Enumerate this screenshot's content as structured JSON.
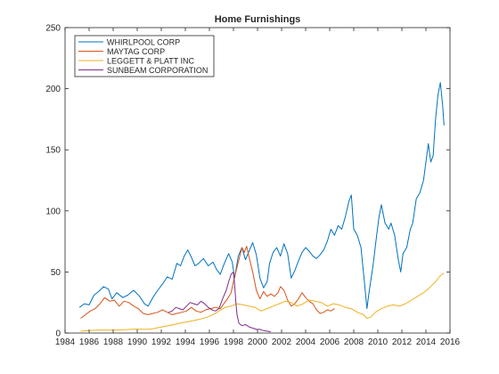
{
  "chart_data": {
    "type": "line",
    "title": "Home Furnishings",
    "xlabel": "",
    "ylabel": "",
    "xlim": [
      1984,
      2016
    ],
    "ylim": [
      0,
      250
    ],
    "xticks": [
      1984,
      1986,
      1988,
      1990,
      1992,
      1994,
      1996,
      1998,
      2000,
      2002,
      2004,
      2006,
      2008,
      2010,
      2012,
      2014,
      2016
    ],
    "yticks": [
      0,
      50,
      100,
      150,
      200,
      250
    ],
    "grid": false,
    "legend_position": "top-left",
    "series": [
      {
        "name": "WHIRLPOOL CORP",
        "color": "#0072BD",
        "points": [
          [
            1985.2,
            21
          ],
          [
            1985.6,
            24
          ],
          [
            1986.0,
            23
          ],
          [
            1986.4,
            31
          ],
          [
            1986.8,
            34
          ],
          [
            1987.2,
            38
          ],
          [
            1987.6,
            36
          ],
          [
            1987.9,
            28
          ],
          [
            1988.3,
            33
          ],
          [
            1988.8,
            29
          ],
          [
            1989.2,
            31
          ],
          [
            1989.7,
            35
          ],
          [
            1990.2,
            30
          ],
          [
            1990.6,
            24
          ],
          [
            1990.9,
            22
          ],
          [
            1991.3,
            29
          ],
          [
            1991.7,
            35
          ],
          [
            1992.1,
            40
          ],
          [
            1992.5,
            46
          ],
          [
            1992.9,
            44
          ],
          [
            1993.3,
            57
          ],
          [
            1993.6,
            55
          ],
          [
            1993.9,
            63
          ],
          [
            1994.2,
            68
          ],
          [
            1994.5,
            62
          ],
          [
            1994.8,
            55
          ],
          [
            1995.1,
            57
          ],
          [
            1995.5,
            61
          ],
          [
            1995.9,
            55
          ],
          [
            1996.3,
            58
          ],
          [
            1996.6,
            52
          ],
          [
            1996.9,
            48
          ],
          [
            1997.2,
            56
          ],
          [
            1997.6,
            65
          ],
          [
            1997.9,
            58
          ],
          [
            1998.1,
            45
          ],
          [
            1998.4,
            63
          ],
          [
            1998.7,
            70
          ],
          [
            1999.0,
            60
          ],
          [
            1999.3,
            67
          ],
          [
            1999.6,
            74
          ],
          [
            1999.9,
            64
          ],
          [
            2000.2,
            45
          ],
          [
            2000.5,
            37
          ],
          [
            2000.8,
            42
          ],
          [
            2001.0,
            57
          ],
          [
            2001.3,
            66
          ],
          [
            2001.6,
            70
          ],
          [
            2001.9,
            63
          ],
          [
            2002.2,
            73
          ],
          [
            2002.5,
            65
          ],
          [
            2002.8,
            45
          ],
          [
            2003.1,
            51
          ],
          [
            2003.4,
            59
          ],
          [
            2003.7,
            66
          ],
          [
            2004.0,
            70
          ],
          [
            2004.3,
            67
          ],
          [
            2004.6,
            63
          ],
          [
            2004.9,
            61
          ],
          [
            2005.2,
            64
          ],
          [
            2005.5,
            68
          ],
          [
            2005.8,
            75
          ],
          [
            2006.1,
            85
          ],
          [
            2006.4,
            80
          ],
          [
            2006.7,
            88
          ],
          [
            2007.0,
            85
          ],
          [
            2007.3,
            95
          ],
          [
            2007.6,
            108
          ],
          [
            2007.8,
            113
          ],
          [
            2008.0,
            85
          ],
          [
            2008.3,
            80
          ],
          [
            2008.6,
            70
          ],
          [
            2008.9,
            40
          ],
          [
            2009.1,
            20
          ],
          [
            2009.3,
            35
          ],
          [
            2009.6,
            55
          ],
          [
            2009.9,
            80
          ],
          [
            2010.1,
            95
          ],
          [
            2010.3,
            105
          ],
          [
            2010.6,
            90
          ],
          [
            2010.9,
            85
          ],
          [
            2011.1,
            90
          ],
          [
            2011.4,
            80
          ],
          [
            2011.7,
            60
          ],
          [
            2011.9,
            50
          ],
          [
            2012.1,
            65
          ],
          [
            2012.4,
            70
          ],
          [
            2012.7,
            85
          ],
          [
            2012.9,
            90
          ],
          [
            2013.2,
            110
          ],
          [
            2013.5,
            115
          ],
          [
            2013.8,
            125
          ],
          [
            2014.0,
            140
          ],
          [
            2014.2,
            155
          ],
          [
            2014.4,
            140
          ],
          [
            2014.6,
            145
          ],
          [
            2014.8,
            175
          ],
          [
            2015.0,
            195
          ],
          [
            2015.2,
            205
          ],
          [
            2015.4,
            185
          ],
          [
            2015.5,
            170
          ]
        ]
      },
      {
        "name": "MAYTAG CORP",
        "color": "#D95319",
        "points": [
          [
            1985.3,
            12
          ],
          [
            1985.7,
            15
          ],
          [
            1986.1,
            18
          ],
          [
            1986.5,
            20
          ],
          [
            1986.9,
            24
          ],
          [
            1987.3,
            29
          ],
          [
            1987.7,
            26
          ],
          [
            1988.1,
            27
          ],
          [
            1988.5,
            22
          ],
          [
            1988.9,
            26
          ],
          [
            1989.3,
            25
          ],
          [
            1989.7,
            22
          ],
          [
            1990.1,
            20
          ],
          [
            1990.5,
            16
          ],
          [
            1990.9,
            15
          ],
          [
            1991.3,
            16
          ],
          [
            1991.7,
            17
          ],
          [
            1992.1,
            19
          ],
          [
            1992.5,
            17
          ],
          [
            1992.9,
            15
          ],
          [
            1993.3,
            16
          ],
          [
            1993.7,
            17
          ],
          [
            1994.1,
            18
          ],
          [
            1994.5,
            21
          ],
          [
            1994.9,
            18
          ],
          [
            1995.3,
            17
          ],
          [
            1995.7,
            19
          ],
          [
            1996.1,
            20
          ],
          [
            1996.5,
            21
          ],
          [
            1996.9,
            20
          ],
          [
            1997.2,
            24
          ],
          [
            1997.5,
            28
          ],
          [
            1997.8,
            33
          ],
          [
            1998.0,
            42
          ],
          [
            1998.2,
            50
          ],
          [
            1998.5,
            62
          ],
          [
            1998.7,
            70
          ],
          [
            1998.9,
            66
          ],
          [
            1999.1,
            71
          ],
          [
            1999.3,
            62
          ],
          [
            1999.6,
            50
          ],
          [
            1999.9,
            35
          ],
          [
            2000.2,
            28
          ],
          [
            2000.5,
            34
          ],
          [
            2000.8,
            30
          ],
          [
            2001.1,
            32
          ],
          [
            2001.4,
            30
          ],
          [
            2001.7,
            33
          ],
          [
            2001.9,
            38
          ],
          [
            2002.2,
            35
          ],
          [
            2002.5,
            27
          ],
          [
            2002.8,
            22
          ],
          [
            2003.1,
            24
          ],
          [
            2003.4,
            28
          ],
          [
            2003.7,
            33
          ],
          [
            2004.0,
            29
          ],
          [
            2004.3,
            26
          ],
          [
            2004.6,
            24
          ],
          [
            2004.9,
            19
          ],
          [
            2005.2,
            16
          ],
          [
            2005.5,
            17
          ],
          [
            2005.8,
            19
          ],
          [
            2006.1,
            18
          ],
          [
            2006.4,
            20
          ]
        ]
      },
      {
        "name": "LEGGETT & PLATT INC",
        "color": "#EDB120",
        "points": [
          [
            1985.3,
            1.5
          ],
          [
            1985.8,
            1.8
          ],
          [
            1986.3,
            2.2
          ],
          [
            1986.8,
            2.5
          ],
          [
            1987.3,
            2.5
          ],
          [
            1987.8,
            2.4
          ],
          [
            1988.3,
            2.5
          ],
          [
            1988.8,
            2.6
          ],
          [
            1989.3,
            2.9
          ],
          [
            1989.8,
            3.2
          ],
          [
            1990.3,
            3.1
          ],
          [
            1990.8,
            3.0
          ],
          [
            1991.3,
            3.5
          ],
          [
            1991.8,
            4.5
          ],
          [
            1992.3,
            5.5
          ],
          [
            1992.8,
            6.5
          ],
          [
            1993.3,
            7.5
          ],
          [
            1993.8,
            8.5
          ],
          [
            1994.3,
            9.5
          ],
          [
            1994.8,
            10.5
          ],
          [
            1995.3,
            11.5
          ],
          [
            1995.8,
            13
          ],
          [
            1996.3,
            15
          ],
          [
            1996.8,
            18
          ],
          [
            1997.3,
            21
          ],
          [
            1997.8,
            22
          ],
          [
            1998.3,
            24
          ],
          [
            1998.8,
            23
          ],
          [
            1999.3,
            22
          ],
          [
            1999.8,
            21
          ],
          [
            2000.3,
            18
          ],
          [
            2000.8,
            20
          ],
          [
            2001.3,
            22
          ],
          [
            2001.8,
            24
          ],
          [
            2002.3,
            26
          ],
          [
            2002.8,
            25
          ],
          [
            2003.3,
            22
          ],
          [
            2003.8,
            24
          ],
          [
            2004.3,
            27
          ],
          [
            2004.8,
            26
          ],
          [
            2005.3,
            25
          ],
          [
            2005.8,
            22
          ],
          [
            2006.3,
            24
          ],
          [
            2006.8,
            23
          ],
          [
            2007.3,
            21
          ],
          [
            2007.8,
            20
          ],
          [
            2008.3,
            17
          ],
          [
            2008.8,
            15
          ],
          [
            2009.1,
            12
          ],
          [
            2009.4,
            13
          ],
          [
            2009.8,
            17
          ],
          [
            2010.3,
            20
          ],
          [
            2010.8,
            22
          ],
          [
            2011.3,
            23
          ],
          [
            2011.8,
            22
          ],
          [
            2012.3,
            24
          ],
          [
            2012.8,
            27
          ],
          [
            2013.3,
            30
          ],
          [
            2013.8,
            33
          ],
          [
            2014.3,
            37
          ],
          [
            2014.8,
            42
          ],
          [
            2015.2,
            47
          ],
          [
            2015.5,
            49
          ]
        ]
      },
      {
        "name": "SUNBEAM CORPORATION",
        "color": "#7E2F8E",
        "points": [
          [
            1992.6,
            17
          ],
          [
            1992.9,
            18
          ],
          [
            1993.2,
            21
          ],
          [
            1993.5,
            20
          ],
          [
            1993.8,
            19
          ],
          [
            1994.1,
            22
          ],
          [
            1994.4,
            25
          ],
          [
            1994.7,
            24
          ],
          [
            1995.0,
            23
          ],
          [
            1995.3,
            26
          ],
          [
            1995.6,
            24
          ],
          [
            1995.9,
            21
          ],
          [
            1996.2,
            19
          ],
          [
            1996.5,
            18
          ],
          [
            1996.8,
            20
          ],
          [
            1997.1,
            28
          ],
          [
            1997.4,
            35
          ],
          [
            1997.6,
            42
          ],
          [
            1997.8,
            48
          ],
          [
            1998.0,
            50
          ],
          [
            1998.1,
            40
          ],
          [
            1998.2,
            25
          ],
          [
            1998.3,
            15
          ],
          [
            1998.45,
            8
          ],
          [
            1998.7,
            6
          ],
          [
            1999.0,
            7
          ],
          [
            1999.3,
            5
          ],
          [
            1999.6,
            4
          ],
          [
            1999.9,
            3
          ],
          [
            2000.2,
            3
          ],
          [
            2000.5,
            2
          ],
          [
            2000.8,
            1.5
          ],
          [
            2001.1,
            1
          ]
        ]
      }
    ]
  }
}
